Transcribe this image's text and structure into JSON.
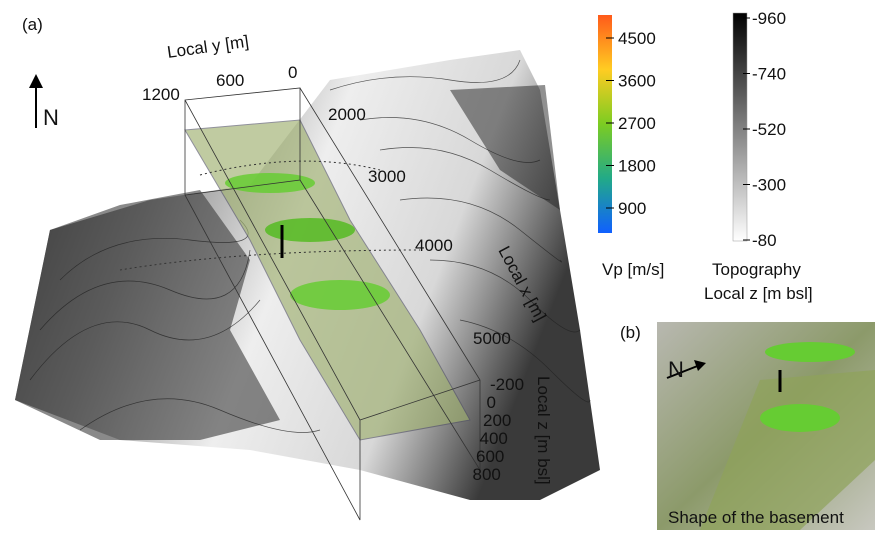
{
  "panel_a": {
    "label": "(a)",
    "north": "N",
    "local_y": {
      "title": "Local y [m]",
      "ticks": [
        1200,
        600,
        0
      ]
    },
    "local_x": {
      "title": "Local x [m]",
      "ticks": [
        2000,
        3000,
        4000,
        5000
      ]
    },
    "local_z": {
      "title": "Local z [m bsl]",
      "ticks": [
        -200,
        0,
        200,
        400,
        600,
        800
      ]
    }
  },
  "colorbar_vp": {
    "title": "Vp [m/s]",
    "ticks": [
      4500,
      3600,
      2700,
      1800,
      900
    ]
  },
  "colorbar_topography": {
    "title": [
      "Topography",
      "Local z [m bsl]"
    ],
    "ticks": [
      -960,
      -740,
      -520,
      -300,
      -80
    ]
  },
  "panel_b": {
    "label": "(b)",
    "north": "N",
    "caption": "Shape of the basement"
  }
}
